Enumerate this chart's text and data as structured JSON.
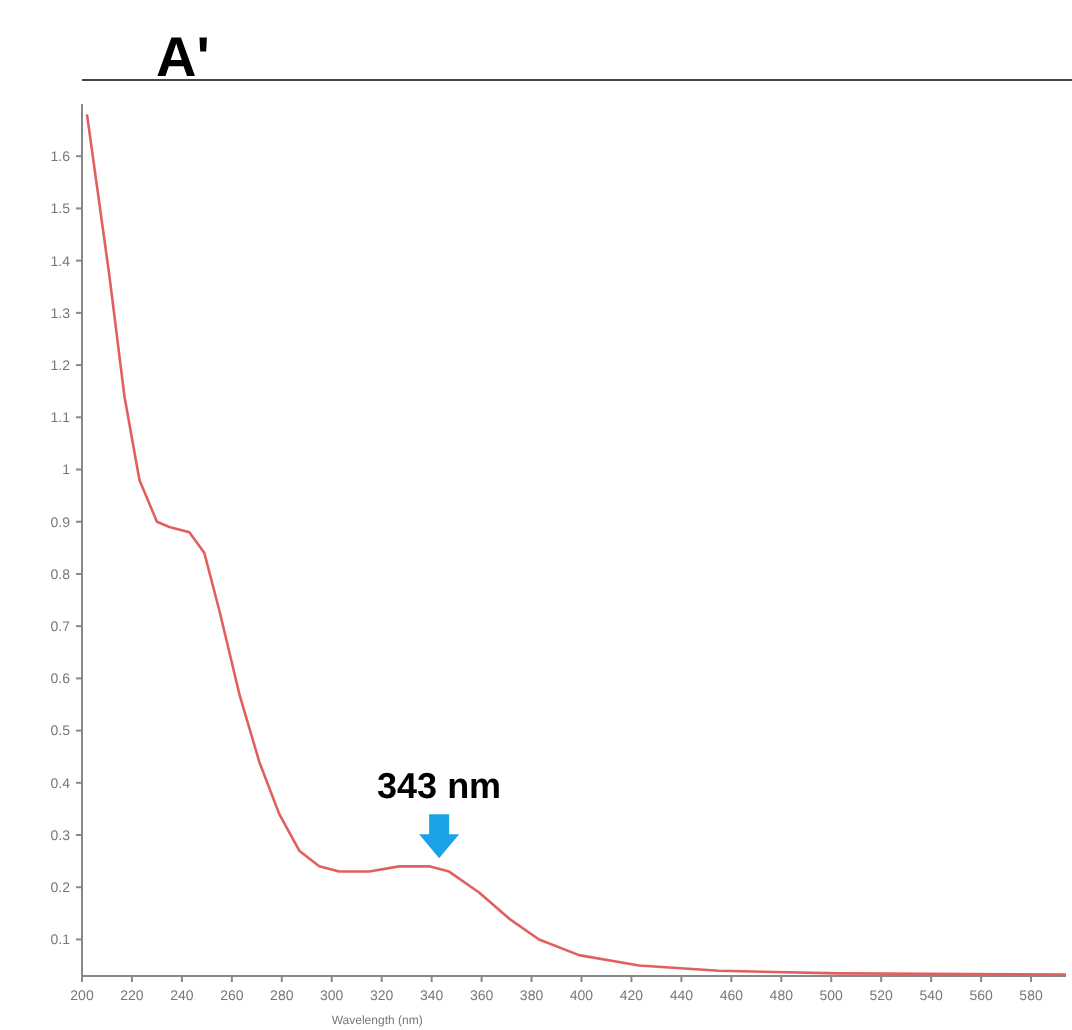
{
  "chart_data": {
    "type": "line",
    "title": "A'",
    "xlabel": "Wavelength (nm)",
    "x": [
      202,
      211,
      217,
      223,
      230,
      235,
      243,
      249,
      255,
      263,
      271,
      279,
      287,
      295,
      303,
      315,
      327,
      339,
      347,
      359,
      371,
      383,
      399,
      423,
      455,
      503,
      594
    ],
    "series": [
      {
        "color": "#e06060",
        "values": [
          1.68,
          1.37,
          1.14,
          0.98,
          0.9,
          0.89,
          0.88,
          0.84,
          0.73,
          0.57,
          0.44,
          0.34,
          0.27,
          0.24,
          0.23,
          0.23,
          0.24,
          0.24,
          0.23,
          0.19,
          0.14,
          0.1,
          0.07,
          0.05,
          0.04,
          0.035,
          0.033
        ]
      }
    ],
    "xlim": [
      200,
      594
    ],
    "xticks": [
      200,
      220,
      240,
      260,
      280,
      300,
      320,
      340,
      360,
      380,
      400,
      420,
      440,
      460,
      480,
      500,
      520,
      540,
      560,
      580
    ],
    "ylim": [
      0.03,
      1.7
    ],
    "yticks": [
      0.1,
      0.2,
      0.3,
      0.4,
      0.5,
      0.6,
      0.7,
      0.8,
      0.9,
      1.0,
      1.1,
      1.2,
      1.3,
      1.4,
      1.5,
      1.6
    ],
    "annotations": [
      {
        "text": "343 nm",
        "x": 343,
        "y": 0.24
      }
    ],
    "grid": false,
    "marker": "none",
    "line_style": "solid"
  }
}
